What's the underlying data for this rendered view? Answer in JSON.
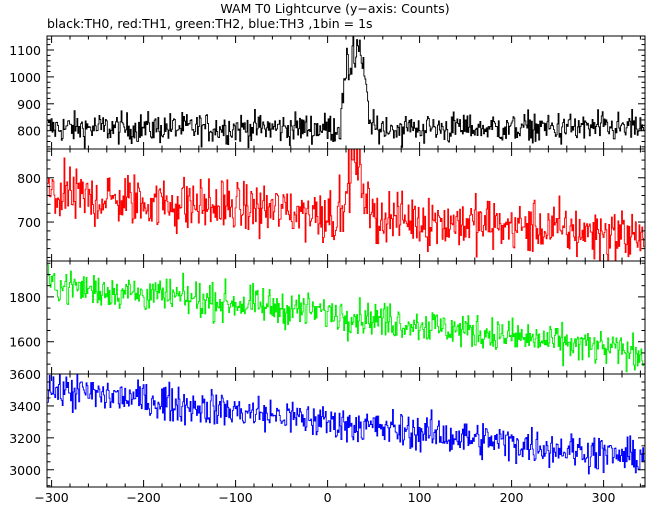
{
  "title": "WAM T0 Lightcurve (y−axis: Counts)",
  "subtitle": "black:TH0, red:TH1, green:TH2, blue:TH3 ,1bin = 1s",
  "chart_data": {
    "type": "line",
    "x_axis": {
      "label": "",
      "range": [
        -305,
        345
      ],
      "ticks": [
        -300,
        -200,
        -100,
        0,
        100,
        200,
        300
      ],
      "tick_labels": [
        "−300",
        "−200",
        "−100",
        "0",
        "100",
        "200",
        "300"
      ]
    },
    "panels": [
      {
        "name": "TH0",
        "color": "#000000",
        "ylim": [
          732,
          1152
        ],
        "yticks": [
          800,
          900,
          1000,
          1100
        ],
        "ytick_labels": [
          "800",
          "900",
          "1000",
          "1100"
        ],
        "baseline": [
          [
            -305,
            810
          ],
          [
            345,
            810
          ]
        ],
        "noise": 28,
        "burst": {
          "x_start": 15,
          "x_end": 45,
          "peak_x": 30,
          "peak_value": 1150
        }
      },
      {
        "name": "TH1",
        "color": "#ff0000",
        "ylim": [
          612,
          865
        ],
        "yticks": [
          700,
          800
        ],
        "ytick_labels": [
          "700",
          "800"
        ],
        "baseline": [
          [
            -305,
            760
          ],
          [
            0,
            720
          ],
          [
            345,
            668
          ]
        ],
        "noise": 30,
        "burst": {
          "x_start": 20,
          "x_end": 45,
          "peak_x": 30,
          "peak_value": 865
        }
      },
      {
        "name": "TH2",
        "color": "#00ee00",
        "ylim": [
          1456,
          1960
        ],
        "yticks": [
          1600,
          1800
        ],
        "ytick_labels": [
          "1600",
          "1800"
        ],
        "baseline": [
          [
            -305,
            1855
          ],
          [
            0,
            1730
          ],
          [
            345,
            1545
          ]
        ],
        "noise": 38
      },
      {
        "name": "TH3",
        "color": "#0000ff",
        "ylim": [
          2892,
          3600
        ],
        "yticks": [
          3000,
          3200,
          3400,
          3600
        ],
        "ytick_labels": [
          "3000",
          "3200",
          "3400",
          "3600"
        ],
        "baseline": [
          [
            -305,
            3510
          ],
          [
            0,
            3300
          ],
          [
            345,
            3070
          ]
        ],
        "noise": 55
      }
    ]
  }
}
